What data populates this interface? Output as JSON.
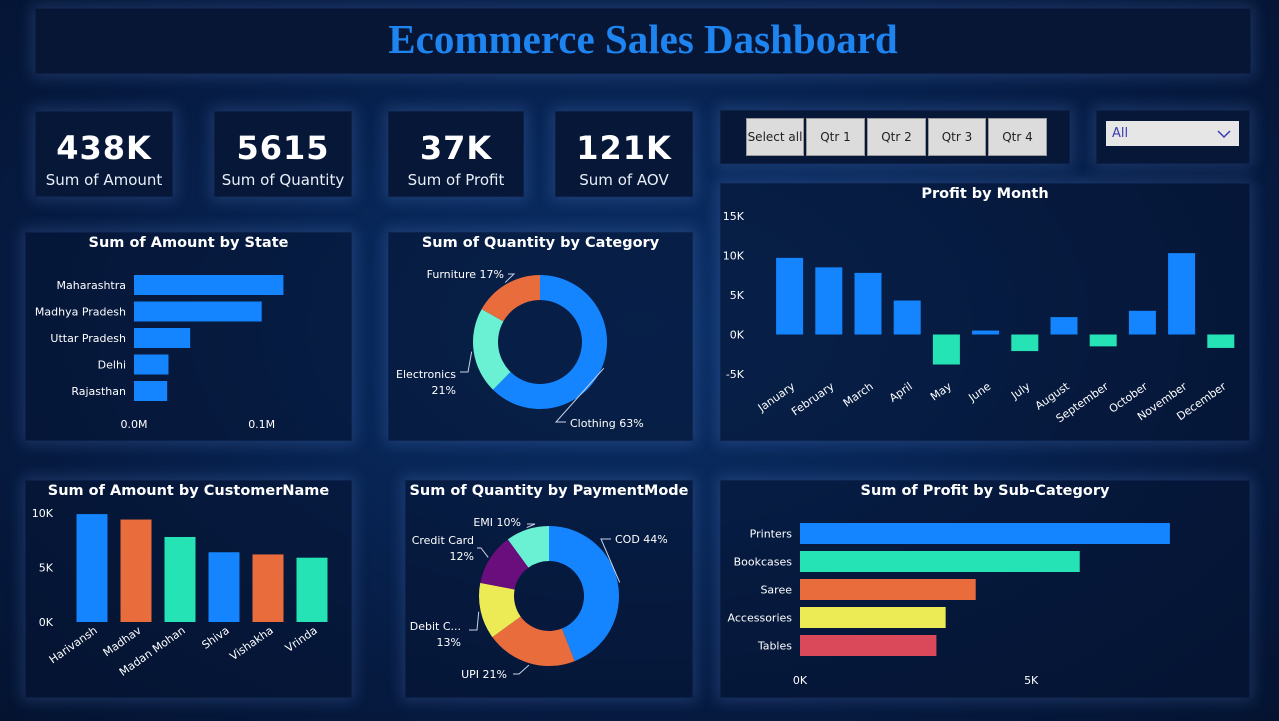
{
  "title": "Ecommerce Sales Dashboard",
  "kpis": [
    {
      "value": "438K",
      "label": "Sum of Amount"
    },
    {
      "value": "5615",
      "label": "Sum of Quantity"
    },
    {
      "value": "37K",
      "label": "Sum of Profit"
    },
    {
      "value": "121K",
      "label": "Sum of AOV"
    }
  ],
  "slicer": {
    "buttons": [
      "Select all",
      "Qtr 1",
      "Qtr 2",
      "Qtr 3",
      "Qtr 4"
    ],
    "dropdown_value": "All"
  },
  "colors": {
    "blue": "#1485fe",
    "teal": "#26e3b6",
    "orange": "#e86c3c",
    "yellow": "#eceb55",
    "purple": "#6a0e7e",
    "red": "#d9495a",
    "light_teal": "#6af0d2",
    "title": "#1e84f0"
  },
  "chart_data": [
    {
      "id": "amount_by_state",
      "type": "bar",
      "orientation": "horizontal",
      "title": "Sum of Amount by State",
      "categories": [
        "Maharashtra",
        "Madhya Pradesh",
        "Uttar Pradesh",
        "Delhi",
        "Rajasthan"
      ],
      "values": [
        0.117,
        0.1,
        0.044,
        0.027,
        0.026
      ],
      "xlim": [
        0,
        0.13
      ],
      "xticks": [
        {
          "v": 0,
          "label": "0.0M"
        },
        {
          "v": 0.1,
          "label": "0.1M"
        }
      ]
    },
    {
      "id": "quantity_by_category",
      "type": "pie",
      "donut": true,
      "title": "Sum of Quantity by Category",
      "slices": [
        {
          "label": "Clothing 63%",
          "value": 63,
          "color": "#1485fe"
        },
        {
          "label": "Electronics 21%",
          "value": 21,
          "color": "#6af0d2"
        },
        {
          "label": "Furniture 17%",
          "value": 17,
          "color": "#e86c3c"
        }
      ]
    },
    {
      "id": "profit_by_month",
      "type": "bar",
      "title": "Profit by Month",
      "categories": [
        "January",
        "February",
        "March",
        "April",
        "May",
        "June",
        "July",
        "August",
        "September",
        "October",
        "November",
        "December"
      ],
      "values": [
        9700,
        8500,
        7800,
        4300,
        -3800,
        500,
        -2100,
        2200,
        -1500,
        3000,
        10300,
        -1700
      ],
      "ylim": [
        -5000,
        15000
      ],
      "yticks": [
        {
          "v": 15000,
          "label": "15K"
        },
        {
          "v": 10000,
          "label": "10K"
        },
        {
          "v": 5000,
          "label": "5K"
        },
        {
          "v": 0,
          "label": "0K"
        },
        {
          "v": -5000,
          "label": "-5K"
        }
      ]
    },
    {
      "id": "amount_by_customer",
      "type": "bar",
      "title": "Sum of Amount by CustomerName",
      "categories": [
        "Harivansh",
        "Madhav",
        "Madan Mohan",
        "Shiva",
        "Vishakha",
        "Vrinda"
      ],
      "values": [
        9900,
        9400,
        7800,
        6400,
        6200,
        5900
      ],
      "colors": [
        "#1485fe",
        "#e86c3c",
        "#26e3b6",
        "#1485fe",
        "#e86c3c",
        "#26e3b6"
      ],
      "ylim": [
        0,
        10000
      ],
      "yticks": [
        {
          "v": 10000,
          "label": "10K"
        },
        {
          "v": 5000,
          "label": "5K"
        },
        {
          "v": 0,
          "label": "0K"
        }
      ]
    },
    {
      "id": "quantity_by_paymentmode",
      "type": "pie",
      "donut": true,
      "title": "Sum of Quantity by PaymentMode",
      "slices": [
        {
          "label": "COD 44%",
          "value": 44,
          "color": "#1485fe"
        },
        {
          "label": "UPI 21%",
          "value": 21,
          "color": "#e86c3c"
        },
        {
          "label": "Debit C... 13%",
          "value": 13,
          "color": "#eceb55"
        },
        {
          "label": "Credit Card 12%",
          "value": 12,
          "color": "#6a0e7e"
        },
        {
          "label": "EMI 10%",
          "value": 10,
          "color": "#6af0d2"
        }
      ]
    },
    {
      "id": "profit_by_subcategory",
      "type": "bar",
      "orientation": "horizontal",
      "title": "Sum of Profit by Sub-Category",
      "categories": [
        "Printers",
        "Bookcases",
        "Saree",
        "Accessories",
        "Tables"
      ],
      "values": [
        8000,
        6050,
        3800,
        3150,
        2950
      ],
      "colors": [
        "#1485fe",
        "#26e3b6",
        "#e86c3c",
        "#eceb55",
        "#d9495a"
      ],
      "xlim": [
        0,
        9300
      ],
      "xticks": [
        {
          "v": 0,
          "label": "0K"
        },
        {
          "v": 5000,
          "label": "5K"
        }
      ]
    }
  ]
}
